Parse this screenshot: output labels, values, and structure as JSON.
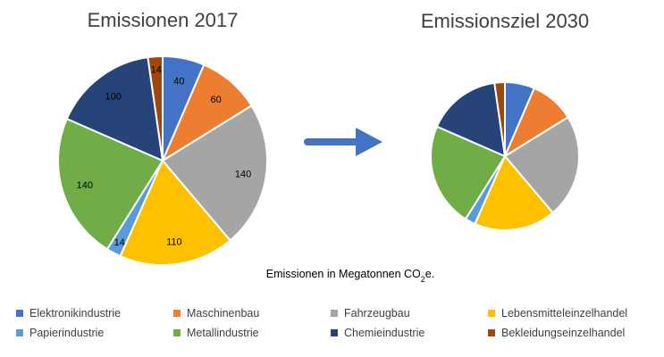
{
  "chart_data": [
    {
      "type": "pie",
      "title": "Emissionen 2017",
      "categories": [
        "Elektronikindustrie",
        "Maschinenbau",
        "Fahrzeugbau",
        "Lebensmitteleinzelhandel",
        "Papierindustrie",
        "Metallindustrie",
        "Chemieindustrie",
        "Bekleidungseinzelhandel"
      ],
      "values": [
        40,
        60,
        140,
        110,
        14,
        140,
        100,
        14
      ],
      "data_labels": [
        "40",
        "60",
        "140",
        "110",
        "14",
        "140",
        "100",
        "14"
      ]
    },
    {
      "type": "pie",
      "title": "Emissionsziel 2030",
      "categories": [
        "Elektronikindustrie",
        "Maschinenbau",
        "Fahrzeugbau",
        "Lebensmitteleinzelhandel",
        "Papierindustrie",
        "Metallindustrie",
        "Chemieindustrie",
        "Bekleidungseinzelhandel"
      ],
      "values": [
        20,
        30,
        70,
        55,
        7,
        70,
        50,
        7
      ]
    }
  ],
  "colors": [
    "#4472C4",
    "#ED7D31",
    "#A5A5A5",
    "#FFC000",
    "#5B9BD5",
    "#70AD47",
    "#264478",
    "#9E480E"
  ],
  "arrow_color": "#4472C4",
  "note": {
    "prefix": "Emissionen in Megatonnen CO",
    "subscript": "2",
    "suffix": "e."
  },
  "legend": [
    "Elektronikindustrie",
    "Maschinenbau",
    "Fahrzeugbau",
    "Lebensmitteleinzelhandel",
    "Papierindustrie",
    "Metallindustrie",
    "Chemieindustrie",
    "Bekleidungseinzelhandel"
  ]
}
